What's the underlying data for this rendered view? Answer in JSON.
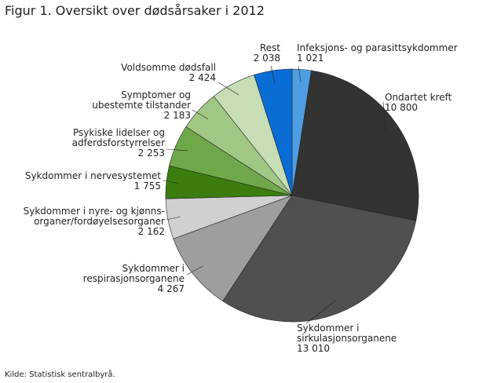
{
  "chart_data": {
    "type": "pie",
    "title": "Figur 1. Oversikt over dødsårsaker i 2012",
    "source": "Kilde: Statistisk sentralbyrå.",
    "categories": [
      "Infeksjons- og parasittsykdommer",
      "Ondartet kreft",
      "Sykdommer i\nsirkulasjonsorganene",
      "Sykdommer i\nrespirasjonsorganene",
      "Sykdommer i nyre- og kjønns-\norganer/fordøyelsesorganer",
      "Sykdommer i nervesystemet",
      "Psykiske lidelser og\nadferdsforstyrrelser",
      "Symptomer og\nubestemte tilstander",
      "Voldsomme dødsfall",
      "Rest"
    ],
    "values": [
      1021,
      10800,
      13010,
      4267,
      2162,
      1755,
      2253,
      2183,
      2424,
      2038
    ],
    "value_labels": [
      "1 021",
      "10 800",
      "13 010",
      "4 267",
      "2 162",
      "1 755",
      "2 253",
      "2 183",
      "2 424",
      "2 038"
    ],
    "colors": [
      "#4f9ee3",
      "#333333",
      "#505050",
      "#9e9e9e",
      "#d0d0d0",
      "#3b7d0e",
      "#6fa84a",
      "#a1c784",
      "#c6ddb5",
      "#0a6dd6"
    ]
  }
}
